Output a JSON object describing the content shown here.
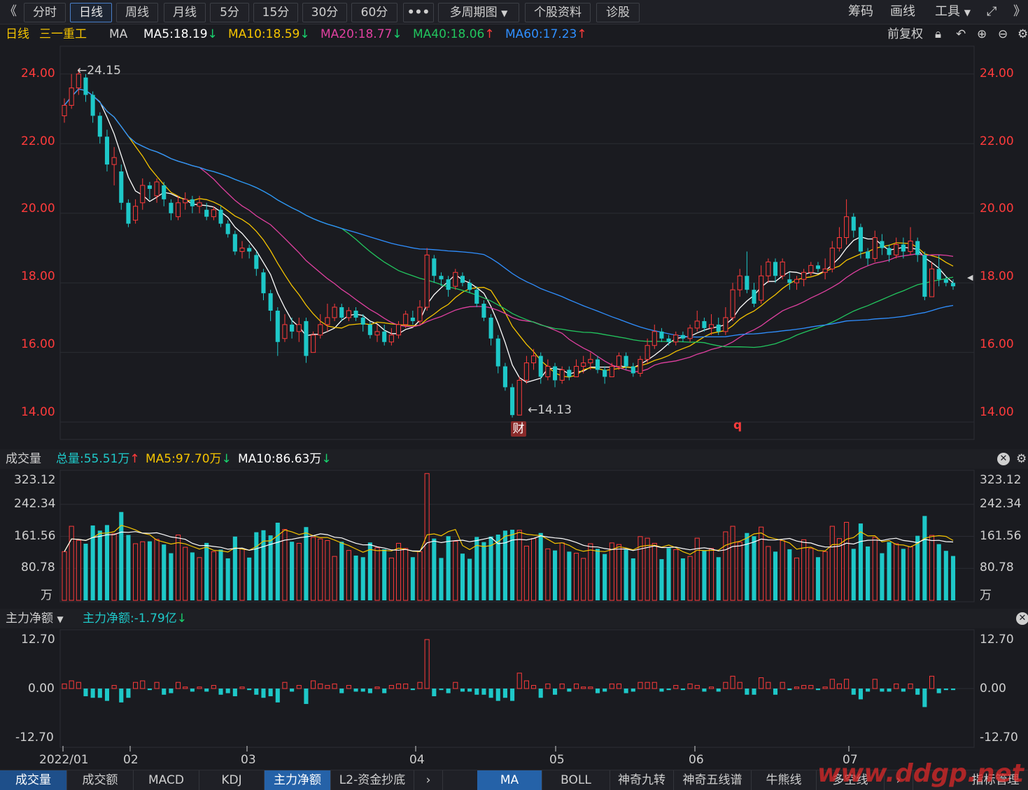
{
  "toolbar": {
    "back": "《",
    "periods": [
      "分时",
      "日线",
      "周线",
      "月线",
      "5分",
      "15分",
      "30分",
      "60分"
    ],
    "active_period": "日线",
    "more": "•••",
    "multi_period": "多周期图",
    "stock_info": "个股资料",
    "diagnose": "诊股",
    "right_items": [
      "筹码",
      "画线",
      "工具"
    ],
    "fwd": "》"
  },
  "price_info": {
    "period": "日线",
    "stock_name": "三一重工",
    "indicator": "MA",
    "ma5": "MA5:18.19",
    "ma10": "MA10:18.59",
    "ma20": "MA20:18.77",
    "ma40": "MA40:18.06",
    "ma60": "MA60:17.23",
    "adjust": "前复权"
  },
  "price_axis": [
    "24.00",
    "22.00",
    "20.00",
    "18.00",
    "16.00",
    "14.00"
  ],
  "price_marks": {
    "high": "←24.15",
    "low": "←14.13",
    "cai": "财",
    "q": "q"
  },
  "volume_info": {
    "title": "成交量",
    "total": "总量:55.51万",
    "ma5": "MA5:97.70万",
    "ma10": "MA10:86.63万"
  },
  "volume_axis": [
    "323.12",
    "242.34",
    "161.56",
    "80.78",
    "万"
  ],
  "flow_info": {
    "title": "主力净额",
    "value": "主力净额:-1.79亿"
  },
  "flow_axis": [
    "12.70",
    "0.00",
    "-12.70"
  ],
  "date_axis": [
    "2022/01",
    "02",
    "03",
    "04",
    "05",
    "06",
    "07"
  ],
  "bottom_tabs_left": [
    "成交量",
    "成交额",
    "MACD",
    "KDJ",
    "主力净额",
    "L2-资金抄底"
  ],
  "bottom_tabs_right": [
    "MA",
    "BOLL",
    "神奇九转",
    "神奇五线谱",
    "牛熊线",
    "多空线",
    "指标管理"
  ],
  "watermark": "www.ddgp.net",
  "colors": {
    "up": "#ff3b3b",
    "down": "#1ec8c8",
    "ma5": "#ffffff",
    "ma10": "#f5c400",
    "ma20": "#e040a0",
    "ma40": "#22c55e",
    "ma60": "#2f8fff",
    "axis_red": "#ff3b3b"
  },
  "chart_data": {
    "type": "candlestick",
    "ylim": [
      13.5,
      24.8
    ],
    "candles": [
      [
        22.8,
        23.1,
        22.6,
        23.3
      ],
      [
        23.1,
        23.6,
        23.0,
        24.0
      ],
      [
        23.6,
        24.0,
        23.4,
        24.15
      ],
      [
        23.9,
        23.4,
        23.2,
        24.0
      ],
      [
        23.4,
        22.8,
        22.6,
        23.5
      ],
      [
        22.8,
        22.2,
        22.0,
        22.9
      ],
      [
        22.2,
        21.4,
        21.2,
        22.4
      ],
      [
        21.4,
        21.6,
        20.8,
        21.9
      ],
      [
        21.2,
        20.3,
        20.1,
        21.4
      ],
      [
        20.3,
        19.7,
        19.6,
        20.4
      ],
      [
        19.8,
        20.2,
        19.7,
        20.4
      ],
      [
        20.3,
        20.8,
        20.1,
        21.0
      ],
      [
        20.8,
        20.7,
        20.4,
        20.9
      ],
      [
        20.5,
        20.9,
        20.3,
        21.0
      ],
      [
        20.8,
        20.4,
        20.2,
        20.9
      ],
      [
        20.3,
        20.0,
        19.8,
        20.4
      ],
      [
        19.9,
        20.3,
        19.8,
        20.5
      ],
      [
        20.3,
        20.4,
        20.1,
        20.6
      ],
      [
        20.4,
        20.2,
        20.0,
        20.5
      ],
      [
        20.2,
        20.3,
        20.0,
        20.5
      ],
      [
        20.1,
        19.9,
        19.8,
        20.3
      ],
      [
        19.9,
        20.1,
        19.8,
        20.2
      ],
      [
        20.1,
        19.7,
        19.6,
        20.2
      ],
      [
        19.7,
        19.4,
        19.3,
        19.8
      ],
      [
        19.4,
        18.9,
        18.8,
        19.5
      ],
      [
        18.9,
        19.0,
        18.7,
        19.2
      ],
      [
        19.0,
        18.9,
        18.7,
        19.1
      ],
      [
        18.8,
        18.4,
        18.2,
        18.9
      ],
      [
        18.3,
        17.7,
        17.5,
        18.4
      ],
      [
        17.7,
        17.2,
        16.9,
        17.8
      ],
      [
        17.2,
        16.3,
        15.9,
        17.3
      ],
      [
        16.4,
        16.8,
        16.3,
        17.1
      ],
      [
        16.8,
        16.6,
        16.4,
        17.0
      ],
      [
        16.6,
        16.8,
        16.3,
        17.0
      ],
      [
        16.9,
        15.9,
        15.7,
        17.0
      ],
      [
        16.0,
        16.5,
        16.0,
        16.6
      ],
      [
        16.5,
        16.8,
        16.4,
        17.1
      ],
      [
        16.8,
        17.0,
        16.6,
        17.4
      ],
      [
        17.0,
        17.3,
        16.9,
        17.4
      ],
      [
        17.3,
        17.0,
        16.9,
        17.4
      ],
      [
        17.0,
        17.2,
        16.9,
        17.3
      ],
      [
        17.2,
        17.0,
        16.9,
        17.3
      ],
      [
        17.0,
        16.8,
        16.6,
        17.1
      ],
      [
        16.8,
        16.5,
        16.4,
        16.9
      ],
      [
        16.5,
        16.6,
        16.3,
        16.8
      ],
      [
        16.6,
        16.3,
        16.2,
        16.8
      ],
      [
        16.3,
        16.5,
        16.2,
        16.7
      ],
      [
        16.5,
        16.8,
        16.4,
        16.9
      ],
      [
        16.8,
        17.1,
        16.7,
        17.2
      ],
      [
        17.0,
        16.9,
        16.8,
        17.2
      ],
      [
        16.9,
        17.3,
        16.8,
        17.5
      ],
      [
        17.3,
        18.8,
        17.2,
        19.0
      ],
      [
        18.7,
        18.2,
        18.0,
        18.8
      ],
      [
        18.2,
        18.1,
        17.9,
        18.3
      ],
      [
        18.1,
        17.8,
        17.6,
        18.2
      ],
      [
        17.9,
        18.3,
        17.8,
        18.4
      ],
      [
        18.2,
        18.0,
        17.9,
        18.3
      ],
      [
        18.0,
        17.8,
        17.7,
        18.1
      ],
      [
        17.8,
        17.4,
        17.3,
        17.9
      ],
      [
        17.4,
        17.0,
        16.9,
        17.5
      ],
      [
        17.0,
        16.4,
        16.2,
        17.1
      ],
      [
        16.4,
        15.6,
        15.4,
        16.5
      ],
      [
        15.6,
        15.0,
        14.9,
        15.7
      ],
      [
        15.0,
        14.2,
        14.13,
        15.1
      ],
      [
        14.2,
        15.2,
        14.2,
        15.3
      ],
      [
        15.2,
        15.7,
        15.1,
        15.9
      ],
      [
        15.7,
        15.9,
        15.5,
        16.1
      ],
      [
        15.9,
        15.3,
        15.1,
        16.0
      ],
      [
        15.3,
        15.6,
        15.2,
        15.8
      ],
      [
        15.6,
        15.2,
        15.0,
        15.7
      ],
      [
        15.2,
        15.5,
        15.1,
        15.6
      ],
      [
        15.5,
        15.3,
        15.2,
        15.6
      ],
      [
        15.3,
        15.6,
        15.3,
        15.8
      ],
      [
        15.6,
        15.7,
        15.4,
        15.9
      ],
      [
        15.7,
        15.8,
        15.5,
        16.0
      ],
      [
        15.8,
        15.5,
        15.4,
        15.9
      ],
      [
        15.5,
        15.3,
        15.1,
        15.6
      ],
      [
        15.3,
        15.6,
        15.3,
        15.7
      ],
      [
        15.6,
        15.9,
        15.5,
        16.0
      ],
      [
        15.9,
        15.6,
        15.5,
        16.0
      ],
      [
        15.6,
        15.4,
        15.3,
        15.7
      ],
      [
        15.4,
        15.8,
        15.3,
        15.9
      ],
      [
        15.8,
        16.2,
        15.7,
        16.4
      ],
      [
        16.2,
        16.6,
        16.1,
        16.8
      ],
      [
        16.6,
        16.4,
        16.3,
        16.7
      ],
      [
        16.4,
        16.3,
        16.2,
        16.5
      ],
      [
        16.3,
        16.5,
        16.2,
        16.6
      ],
      [
        16.5,
        16.4,
        16.3,
        16.6
      ],
      [
        16.4,
        16.7,
        16.3,
        16.8
      ],
      [
        16.7,
        16.9,
        16.6,
        17.2
      ],
      [
        16.9,
        16.7,
        16.6,
        17.0
      ],
      [
        16.7,
        16.8,
        16.5,
        17.1
      ],
      [
        16.8,
        16.6,
        16.5,
        17.0
      ],
      [
        16.6,
        17.0,
        16.5,
        17.3
      ],
      [
        17.0,
        17.8,
        16.9,
        18.0
      ],
      [
        17.8,
        18.2,
        17.6,
        18.4
      ],
      [
        18.2,
        17.8,
        17.7,
        18.9
      ],
      [
        17.8,
        17.4,
        17.3,
        18.0
      ],
      [
        17.5,
        18.2,
        17.4,
        18.5
      ],
      [
        18.2,
        18.6,
        18.0,
        18.7
      ],
      [
        18.6,
        18.2,
        18.0,
        18.7
      ],
      [
        18.2,
        18.6,
        18.1,
        18.7
      ],
      [
        18.1,
        18.0,
        17.8,
        18.3
      ],
      [
        18.0,
        18.1,
        17.8,
        18.2
      ],
      [
        18.1,
        18.3,
        17.9,
        18.4
      ],
      [
        18.3,
        18.5,
        18.2,
        18.6
      ],
      [
        18.5,
        18.4,
        18.3,
        18.6
      ],
      [
        18.3,
        18.4,
        18.1,
        18.7
      ],
      [
        18.4,
        19.0,
        18.3,
        19.2
      ],
      [
        19.0,
        19.3,
        18.9,
        19.6
      ],
      [
        19.3,
        19.9,
        19.1,
        20.4
      ],
      [
        19.9,
        19.5,
        19.3,
        20.0
      ],
      [
        19.6,
        18.9,
        18.7,
        19.7
      ],
      [
        18.9,
        18.7,
        18.5,
        19.0
      ],
      [
        18.7,
        19.3,
        18.6,
        19.5
      ],
      [
        19.2,
        19.0,
        18.8,
        19.4
      ],
      [
        19.0,
        18.8,
        18.6,
        19.1
      ],
      [
        18.8,
        19.1,
        18.7,
        19.3
      ],
      [
        19.1,
        18.9,
        18.7,
        19.3
      ],
      [
        18.9,
        19.2,
        18.8,
        19.6
      ],
      [
        19.2,
        18.8,
        18.6,
        19.3
      ],
      [
        18.8,
        17.6,
        17.5,
        18.9
      ],
      [
        17.6,
        18.4,
        17.6,
        18.6
      ],
      [
        18.4,
        18.1,
        17.9,
        18.8
      ],
      [
        18.1,
        18.0,
        17.9,
        18.2
      ],
      [
        18.0,
        17.9,
        17.8,
        18.1
      ]
    ],
    "high_label": 24.15,
    "low_label": 14.13
  }
}
